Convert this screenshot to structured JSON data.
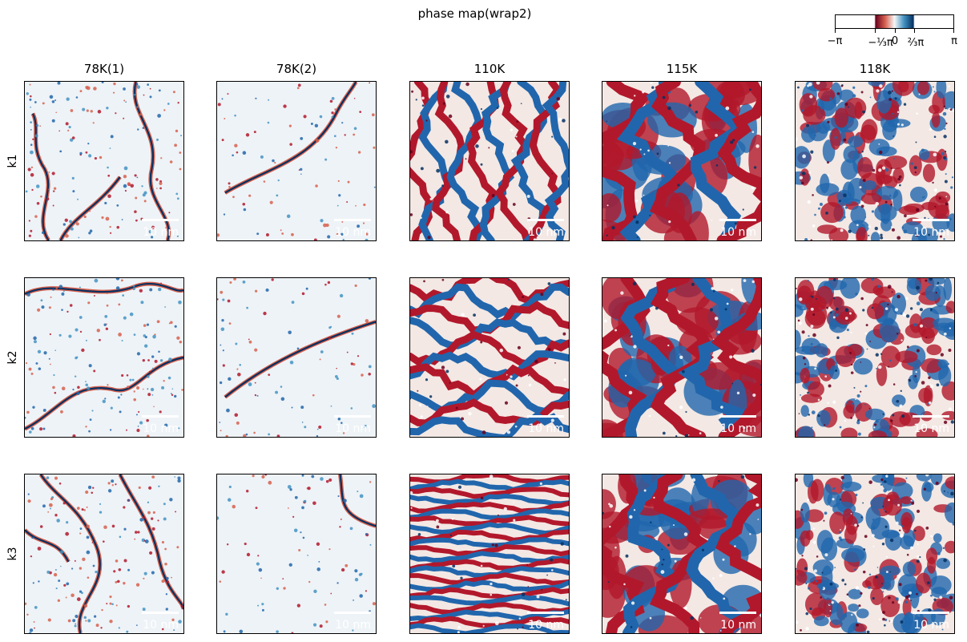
{
  "title": "phase map(wrap2)",
  "columns": [
    "78K(1)",
    "78K(2)",
    "110K",
    "115K",
    "118K"
  ],
  "rows": [
    "k1",
    "k2",
    "k3"
  ],
  "scalebar_label": "10 nm",
  "colorbar": {
    "ticks": [
      "−π",
      "−⅓π",
      "0",
      "⅔π",
      "π"
    ],
    "colors": [
      "#ffffff",
      "#67001f",
      "#f7f7f7",
      "#053061",
      "#ffffff"
    ]
  },
  "panel_styles": {
    "78K(1)": "sparse-domain-walls",
    "78K(2)": "single-domain-wall",
    "110K": "stripes",
    "115K": "large-domains",
    "118K": "fine-turbulent"
  }
}
